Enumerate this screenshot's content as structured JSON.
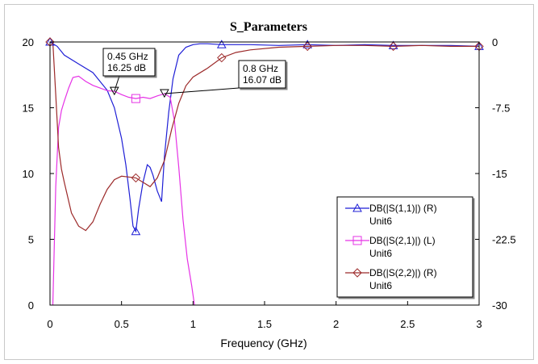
{
  "chart_data": {
    "type": "line",
    "title": "S_Parameters",
    "xlabel": "Frequency (GHz)",
    "ylabel_left": "",
    "ylabel_right": "",
    "xlim": [
      0,
      3
    ],
    "ylim_left": [
      0,
      20
    ],
    "ylim_right": [
      -30,
      0
    ],
    "x_ticks": [
      "0",
      "0.5",
      "1",
      "1.5",
      "2",
      "2.5",
      "3"
    ],
    "y_left_ticks": [
      "0",
      "5",
      "10",
      "15",
      "20"
    ],
    "y_right_ticks": [
      "-30",
      "-22.5",
      "-15",
      "-7.5",
      "0"
    ],
    "grid": false,
    "legend_position": "bottom-right",
    "series": [
      {
        "name": "DB(|S(1,1)|) (R)",
        "subname": "Unit6",
        "axis": "right",
        "color": "#1f1fd6",
        "marker": "triangle",
        "x": [
          0,
          0.05,
          0.1,
          0.2,
          0.3,
          0.4,
          0.45,
          0.5,
          0.53,
          0.56,
          0.58,
          0.6,
          0.62,
          0.65,
          0.68,
          0.7,
          0.72,
          0.75,
          0.78,
          0.8,
          0.83,
          0.86,
          0.9,
          0.95,
          1.0,
          1.05,
          1.1,
          1.2,
          1.4,
          1.6,
          1.8,
          2.0,
          2.2,
          2.4,
          2.6,
          2.8,
          3.0
        ],
        "y": [
          0,
          -0.5,
          -1.5,
          -2.5,
          -3.5,
          -5.5,
          -7.5,
          -11.0,
          -14.0,
          -18.0,
          -21.0,
          -21.6,
          -19.0,
          -16.0,
          -14.0,
          -14.3,
          -15.2,
          -17.0,
          -18.2,
          -13.0,
          -8.0,
          -4.2,
          -1.5,
          -0.6,
          -0.3,
          -0.2,
          -0.2,
          -0.3,
          -0.3,
          -0.4,
          -0.3,
          -0.4,
          -0.3,
          -0.4,
          -0.4,
          -0.4,
          -0.5
        ]
      },
      {
        "name": "DB(|S(2,1)|) (L)",
        "subname": "Unit6",
        "axis": "left",
        "color": "#e633e6",
        "marker": "square",
        "x": [
          0.02,
          0.04,
          0.06,
          0.08,
          0.1,
          0.13,
          0.16,
          0.2,
          0.25,
          0.3,
          0.35,
          0.4,
          0.45,
          0.5,
          0.55,
          0.6,
          0.65,
          0.7,
          0.75,
          0.8,
          0.84,
          0.87,
          0.9,
          0.93,
          0.96,
          0.99,
          1.01
        ],
        "y": [
          0,
          9.0,
          13.5,
          14.8,
          15.5,
          16.5,
          17.3,
          17.4,
          17.0,
          16.7,
          16.5,
          16.3,
          16.25,
          16.0,
          15.8,
          15.7,
          15.8,
          15.7,
          15.9,
          16.07,
          15.8,
          14.0,
          10.5,
          6.5,
          3.5,
          1.5,
          0
        ]
      },
      {
        "name": "DB(|S(2,2)|) (R)",
        "subname": "Unit6",
        "axis": "right",
        "color": "#9c2a2a",
        "marker": "diamond",
        "x": [
          0,
          0.02,
          0.04,
          0.06,
          0.08,
          0.1,
          0.15,
          0.2,
          0.25,
          0.3,
          0.35,
          0.4,
          0.45,
          0.5,
          0.55,
          0.6,
          0.65,
          0.7,
          0.75,
          0.8,
          0.85,
          0.9,
          0.95,
          1.0,
          1.1,
          1.2,
          1.3,
          1.4,
          1.6,
          1.8,
          2.0,
          2.2,
          2.4,
          2.6,
          2.8,
          3.0
        ],
        "y": [
          0,
          0,
          -6.0,
          -12.0,
          -14.5,
          -16.0,
          -19.5,
          -21.0,
          -21.5,
          -20.5,
          -18.5,
          -16.8,
          -15.7,
          -15.3,
          -15.4,
          -15.5,
          -16.0,
          -16.5,
          -15.5,
          -13.5,
          -10.0,
          -7.0,
          -5.0,
          -4.0,
          -3.0,
          -1.8,
          -1.2,
          -0.9,
          -0.6,
          -0.5,
          -0.4,
          -0.4,
          -0.5,
          -0.4,
          -0.5,
          -0.5
        ]
      }
    ],
    "annotations": [
      {
        "series": "DB(|S(2,1)|) (L)",
        "x": 0.45,
        "y": 16.25,
        "line1": "0.45 GHz",
        "line2": "16.25 dB"
      },
      {
        "series": "DB(|S(2,1)|) (L)",
        "x": 0.8,
        "y": 16.07,
        "line1": "0.8 GHz",
        "line2": "16.07 dB"
      }
    ]
  }
}
